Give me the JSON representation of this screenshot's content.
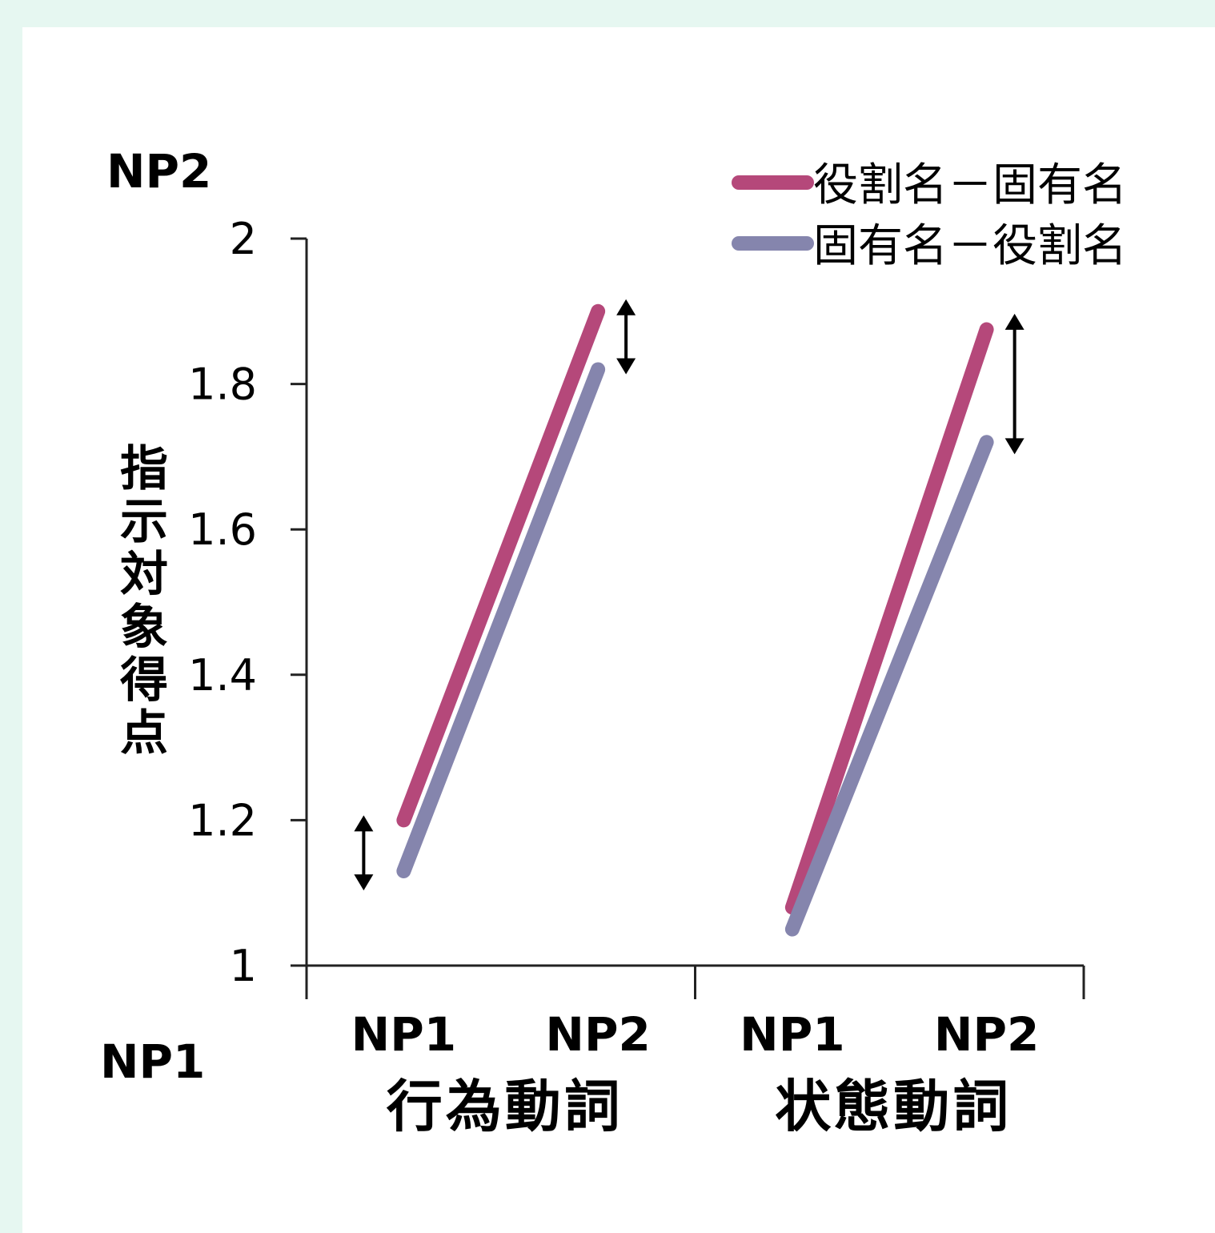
{
  "chart_data": {
    "type": "line",
    "ylabel": "指示対象得点",
    "ylim": [
      1,
      2
    ],
    "yticks": [
      "1",
      "1.2",
      "1.4",
      "1.6",
      "1.8",
      "2"
    ],
    "y_top_label": "NP2",
    "y_bottom_label": "NP1",
    "groups": [
      {
        "name": "行為動詞",
        "categories": [
          "NP1",
          "NP2"
        ]
      },
      {
        "name": "状態動詞",
        "categories": [
          "NP1",
          "NP2"
        ]
      }
    ],
    "series": [
      {
        "name": "役割名－固有名",
        "color": "#b5487a",
        "values": [
          [
            1.2,
            1.9
          ],
          [
            1.08,
            1.875
          ]
        ]
      },
      {
        "name": "固有名－役割名",
        "color": "#8585ad",
        "values": [
          [
            1.13,
            1.82
          ],
          [
            1.05,
            1.72
          ]
        ]
      }
    ],
    "annotations": [
      {
        "type": "double-arrow",
        "group": 0,
        "category": 0,
        "from": 1.11,
        "to": 1.2
      },
      {
        "type": "double-arrow",
        "group": 0,
        "category": 1,
        "from": 1.82,
        "to": 1.91
      },
      {
        "type": "double-arrow",
        "group": 1,
        "category": 1,
        "from": 1.71,
        "to": 1.89
      }
    ],
    "legend_position": "top-right",
    "grid": false
  }
}
